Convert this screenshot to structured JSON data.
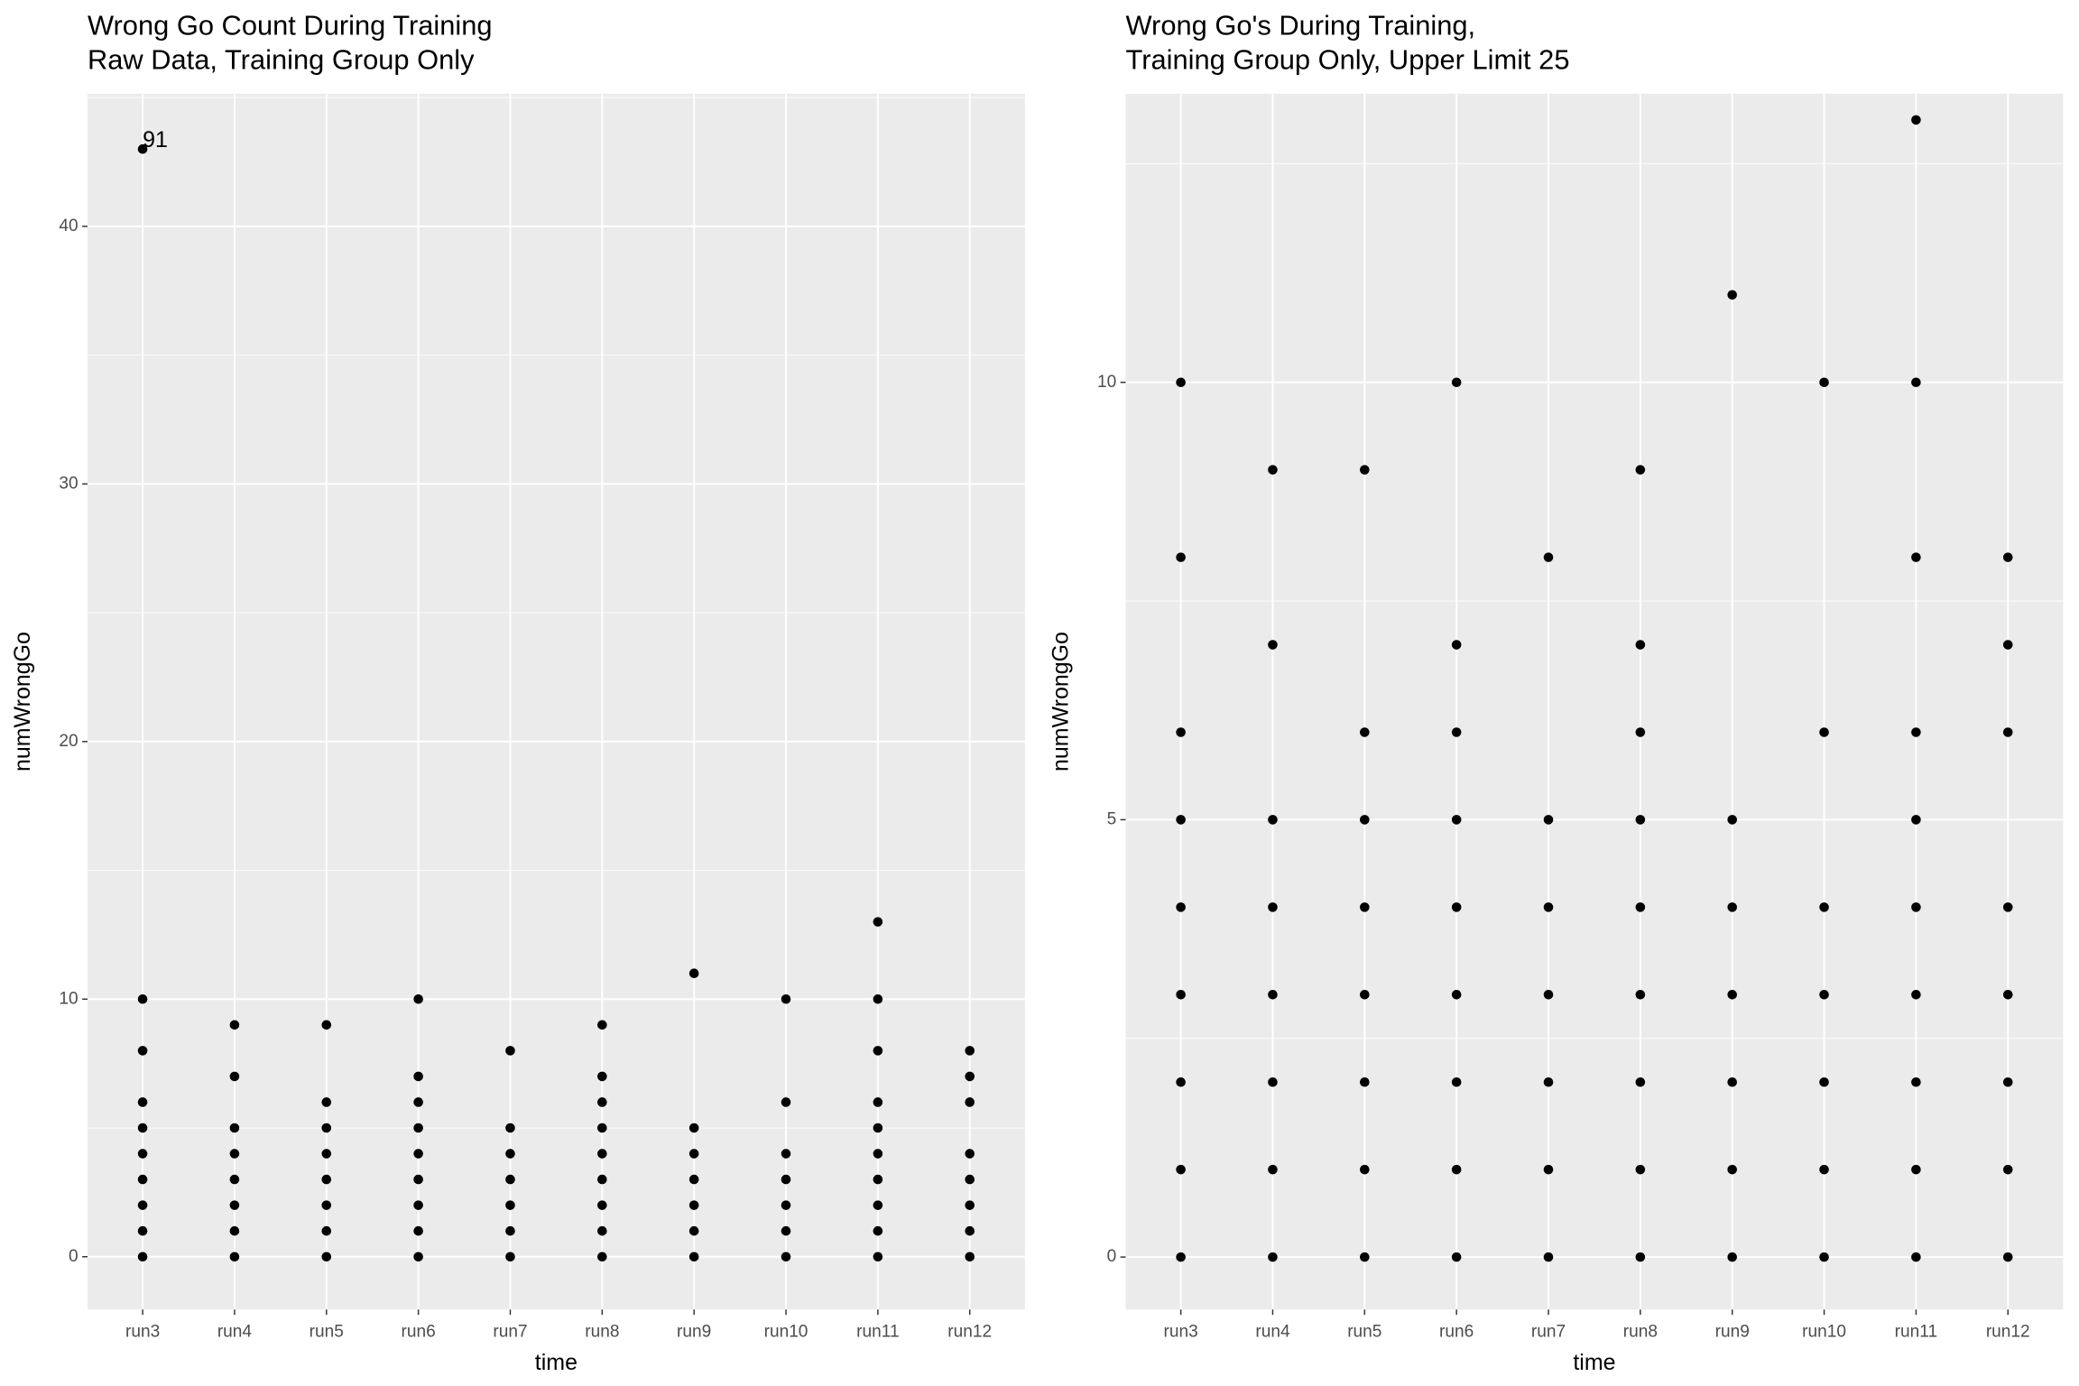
{
  "chart_data": [
    {
      "type": "scatter",
      "title": "Wrong Go Count During Training",
      "subtitle": "Raw Data, Training Group Only",
      "x_label": "time",
      "y_label": "numWrongGo",
      "color": "#000000",
      "grid": true,
      "categories": [
        "run3",
        "run4",
        "run5",
        "run6",
        "run7",
        "run8",
        "run9",
        "run10",
        "run11",
        "run12"
      ],
      "values": [
        [
          43,
          10,
          8,
          6,
          5,
          4,
          3,
          2,
          1,
          0
        ],
        [
          9,
          7,
          5,
          4,
          3,
          2,
          1,
          0
        ],
        [
          9,
          6,
          5,
          4,
          3,
          2,
          1,
          0
        ],
        [
          10,
          7,
          6,
          5,
          4,
          3,
          2,
          1,
          0
        ],
        [
          8,
          5,
          4,
          3,
          2,
          1,
          0
        ],
        [
          9,
          7,
          6,
          5,
          4,
          3,
          2,
          1,
          0
        ],
        [
          11,
          5,
          4,
          3,
          2,
          1,
          0
        ],
        [
          10,
          6,
          4,
          3,
          2,
          1,
          0
        ],
        [
          13,
          10,
          8,
          6,
          5,
          4,
          3,
          2,
          1,
          0
        ],
        [
          8,
          7,
          6,
          4,
          3,
          2,
          1,
          0
        ]
      ],
      "annotations": [
        {
          "text": "91",
          "x": "run3",
          "y": 43
        }
      ],
      "ylim": [
        -2.05,
        45.15
      ],
      "yticks": [
        0,
        10,
        20,
        30,
        40
      ]
    },
    {
      "type": "scatter",
      "title": "Wrong Go's During Training,",
      "subtitle": "Training Group Only, Upper Limit 25",
      "x_label": "time",
      "y_label": "numWrongGo",
      "color": "#000000",
      "grid": true,
      "categories": [
        "run3",
        "run4",
        "run5",
        "run6",
        "run7",
        "run8",
        "run9",
        "run10",
        "run11",
        "run12"
      ],
      "values": [
        [
          10,
          8,
          6,
          5,
          4,
          3,
          2,
          1,
          0
        ],
        [
          9,
          7,
          5,
          4,
          3,
          2,
          1,
          0
        ],
        [
          9,
          6,
          5,
          4,
          3,
          2,
          1,
          0
        ],
        [
          10,
          7,
          6,
          5,
          4,
          3,
          2,
          1,
          0
        ],
        [
          8,
          5,
          4,
          3,
          2,
          1,
          0
        ],
        [
          9,
          7,
          6,
          5,
          4,
          3,
          2,
          1,
          0
        ],
        [
          11,
          5,
          4,
          3,
          2,
          1,
          0
        ],
        [
          10,
          6,
          4,
          3,
          2,
          1,
          0
        ],
        [
          13,
          10,
          8,
          6,
          5,
          4,
          3,
          2,
          1,
          0
        ],
        [
          8,
          7,
          6,
          4,
          3,
          2,
          1,
          0
        ]
      ],
      "ylim": [
        -0.6,
        13.3
      ],
      "yticks": [
        0,
        5,
        10
      ]
    }
  ]
}
